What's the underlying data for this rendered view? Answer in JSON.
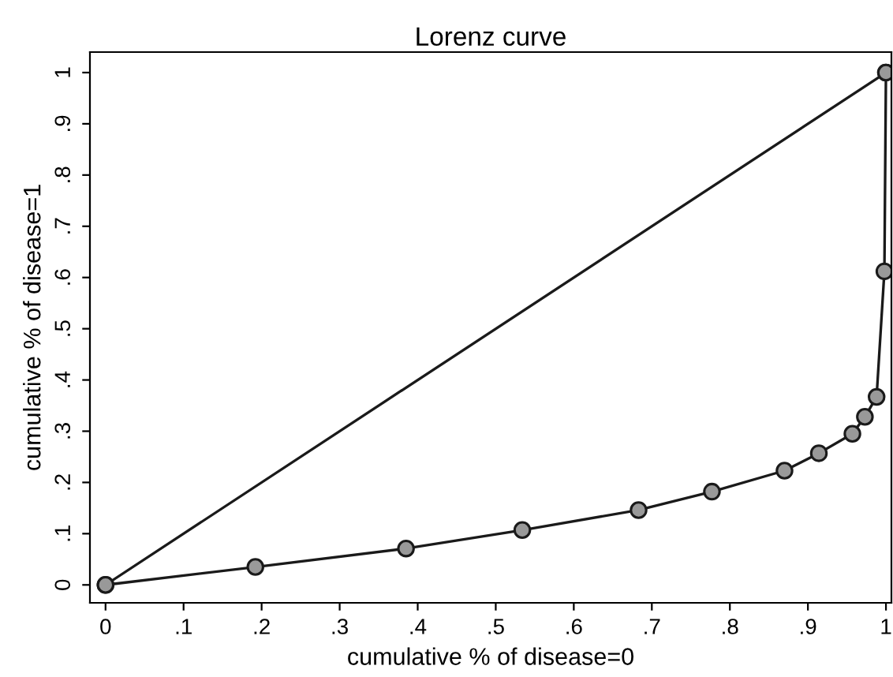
{
  "chart_data": {
    "type": "line",
    "title": "Lorenz curve",
    "xlabel": "cumulative % of disease=0",
    "ylabel": "cumulative % of disease=1",
    "series": [
      {
        "color": "#1a1a1a",
        "marker": "circle",
        "x": [
          0,
          1
        ],
        "values": [
          0,
          1
        ]
      },
      {
        "color": "#1a1a1a",
        "marker": "circle",
        "x": [
          0,
          0.192,
          0.385,
          0.534,
          0.683,
          0.777,
          0.87,
          0.914,
          0.957,
          0.973,
          0.988,
          0.998,
          1.0
        ],
        "values": [
          0,
          0.035,
          0.071,
          0.107,
          0.146,
          0.182,
          0.223,
          0.257,
          0.295,
          0.328,
          0.367,
          0.612,
          1.0
        ]
      }
    ],
    "xlim": [
      -0.02,
      1.007
    ],
    "ylim": [
      -0.035,
      1.04
    ],
    "xticks": [
      0,
      {
        "value": 0.1,
        "label": ".1"
      },
      {
        "value": 0.2,
        "label": ".2"
      },
      {
        "value": 0.3,
        "label": ".3"
      },
      {
        "value": 0.4,
        "label": ".4"
      },
      {
        "value": 0.5,
        "label": ".5"
      },
      {
        "value": 0.6,
        "label": ".6"
      },
      {
        "value": 0.7,
        "label": ".7"
      },
      {
        "value": 0.8,
        "label": ".8"
      },
      {
        "value": 0.9,
        "label": ".9"
      },
      1
    ],
    "yticks": [
      0,
      {
        "value": 0.1,
        "label": ".1"
      },
      {
        "value": 0.2,
        "label": ".2"
      },
      {
        "value": 0.3,
        "label": ".3"
      },
      {
        "value": 0.4,
        "label": ".4"
      },
      {
        "value": 0.5,
        "label": ".5"
      },
      {
        "value": 0.6,
        "label": ".6"
      },
      {
        "value": 0.7,
        "label": ".7"
      },
      {
        "value": 0.8,
        "label": ".8"
      },
      {
        "value": 0.9,
        "label": ".9"
      },
      1
    ],
    "grid": false,
    "legend": false
  }
}
